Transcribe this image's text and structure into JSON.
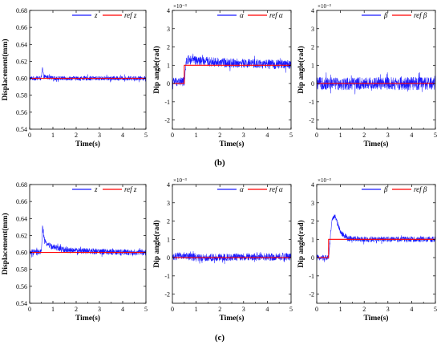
{
  "chart_data": [
    {
      "type": "line",
      "group": "b",
      "xlabel": "Time(s)",
      "ylabel": "Displacement(mm)",
      "xlim": [
        0,
        5
      ],
      "ylim": [
        0.54,
        0.68
      ],
      "xticks": [
        "0",
        "1",
        "2",
        "3",
        "4",
        "5"
      ],
      "yticks": [
        "0.54",
        "0.56",
        "0.58",
        "0.60",
        "0.62",
        "0.64",
        "0.66",
        "0.68"
      ],
      "exponent_label": "",
      "legend": {
        "position": "top-right",
        "items": [
          "z",
          "ref z"
        ]
      },
      "colors": {
        "measured": "#1a1aff",
        "reference": "#ff0000"
      },
      "series": [
        {
          "name": "z",
          "role": "measured",
          "points": [
            [
              0,
              0.6
            ],
            [
              0.5,
              0.6
            ],
            [
              0.55,
              0.612
            ],
            [
              0.6,
              0.602
            ],
            [
              1,
              0.6
            ],
            [
              2,
              0.6
            ],
            [
              3,
              0.6
            ],
            [
              4,
              0.6
            ],
            [
              5,
              0.6
            ]
          ],
          "noise": 0.0025
        },
        {
          "name": "ref z",
          "role": "reference",
          "points": [
            [
              0,
              0.6
            ],
            [
              5,
              0.6
            ]
          ],
          "noise": 0
        }
      ]
    },
    {
      "type": "line",
      "group": "b",
      "xlabel": "Time(s)",
      "ylabel": "Dip angle(rad)",
      "xlim": [
        0,
        5
      ],
      "ylim": [
        -2.5,
        4
      ],
      "xticks": [
        "0",
        "1",
        "2",
        "3",
        "4",
        "5"
      ],
      "yticks": [
        "-2",
        "-1",
        "0",
        "1",
        "2",
        "3",
        "4"
      ],
      "exponent_label": "×10⁻³",
      "legend": {
        "position": "top-right",
        "items": [
          "α",
          "ref α"
        ]
      },
      "colors": {
        "measured": "#1a1aff",
        "reference": "#ff0000"
      },
      "series": [
        {
          "name": "α",
          "role": "measured",
          "points": [
            [
              0,
              0.1
            ],
            [
              0.5,
              0.1
            ],
            [
              0.6,
              1.3
            ],
            [
              1,
              1.25
            ],
            [
              2,
              1.15
            ],
            [
              3,
              1.1
            ],
            [
              4,
              1.05
            ],
            [
              5,
              1.05
            ]
          ],
          "noise": 0.25
        },
        {
          "name": "ref α",
          "role": "reference",
          "points": [
            [
              0,
              0
            ],
            [
              0.5,
              0
            ],
            [
              0.5,
              1.0
            ],
            [
              5,
              1.0
            ]
          ],
          "noise": 0
        }
      ]
    },
    {
      "type": "line",
      "group": "b",
      "xlabel": "Time(s)",
      "ylabel": "Dip angle(rad)",
      "xlim": [
        0,
        5
      ],
      "ylim": [
        -2.5,
        4
      ],
      "xticks": [
        "0",
        "1",
        "2",
        "3",
        "4",
        "5"
      ],
      "yticks": [
        "-2",
        "-1",
        "0",
        "1",
        "2",
        "3",
        "4"
      ],
      "exponent_label": "×10⁻³",
      "legend": {
        "position": "top-right",
        "items": [
          "β",
          "ref β"
        ]
      },
      "colors": {
        "measured": "#1a1aff",
        "reference": "#ff0000"
      },
      "series": [
        {
          "name": "β",
          "role": "measured",
          "points": [
            [
              0,
              0.0
            ],
            [
              5,
              0.0
            ]
          ],
          "noise": 0.35
        },
        {
          "name": "ref β",
          "role": "reference",
          "points": [
            [
              0,
              0
            ],
            [
              5,
              0
            ]
          ],
          "noise": 0
        }
      ]
    },
    {
      "type": "line",
      "group": "c",
      "xlabel": "Time(s)",
      "ylabel": "Displacement(mm)",
      "xlim": [
        0,
        5
      ],
      "ylim": [
        0.54,
        0.68
      ],
      "xticks": [
        "0",
        "1",
        "2",
        "3",
        "4",
        "5"
      ],
      "yticks": [
        "0.54",
        "0.56",
        "0.58",
        "0.60",
        "0.62",
        "0.64",
        "0.66",
        "0.68"
      ],
      "exponent_label": "",
      "legend": {
        "position": "top-right",
        "items": [
          "z",
          "ref z"
        ]
      },
      "colors": {
        "measured": "#1a1aff",
        "reference": "#ff0000"
      },
      "series": [
        {
          "name": "z",
          "role": "measured",
          "points": [
            [
              0,
              0.6
            ],
            [
              0.5,
              0.6
            ],
            [
              0.55,
              0.63
            ],
            [
              0.65,
              0.612
            ],
            [
              1,
              0.606
            ],
            [
              1.5,
              0.603
            ],
            [
              2,
              0.602
            ],
            [
              3,
              0.601
            ],
            [
              4,
              0.6
            ],
            [
              5,
              0.6
            ]
          ],
          "noise": 0.0035
        },
        {
          "name": "ref z",
          "role": "reference",
          "points": [
            [
              0,
              0.6
            ],
            [
              5,
              0.6
            ]
          ],
          "noise": 0
        }
      ]
    },
    {
      "type": "line",
      "group": "c",
      "xlabel": "Time(s)",
      "ylabel": "Dip angle(rad)",
      "xlim": [
        0,
        5
      ],
      "ylim": [
        -2.5,
        4
      ],
      "xticks": [
        "0",
        "1",
        "2",
        "3",
        "4",
        "5"
      ],
      "yticks": [
        "-2",
        "-1",
        "0",
        "1",
        "2",
        "3",
        "4"
      ],
      "exponent_label": "×10⁻³",
      "legend": {
        "position": "top-right",
        "items": [
          "α",
          "ref α"
        ]
      },
      "colors": {
        "measured": "#1a1aff",
        "reference": "#ff0000"
      },
      "series": [
        {
          "name": "α",
          "role": "measured",
          "points": [
            [
              0,
              0.05
            ],
            [
              0.5,
              0.1
            ],
            [
              1,
              0.0
            ],
            [
              5,
              0.05
            ]
          ],
          "noise": 0.2
        },
        {
          "name": "ref α",
          "role": "reference",
          "points": [
            [
              0,
              0
            ],
            [
              5,
              0
            ]
          ],
          "noise": 0
        }
      ]
    },
    {
      "type": "line",
      "group": "c",
      "xlabel": "Time(s)",
      "ylabel": "Dip angle(rad)",
      "xlim": [
        0,
        5
      ],
      "ylim": [
        -2.5,
        4
      ],
      "xticks": [
        "0",
        "1",
        "2",
        "3",
        "4",
        "5"
      ],
      "yticks": [
        "-2",
        "-1",
        "0",
        "1",
        "2",
        "3",
        "4"
      ],
      "exponent_label": "×10⁻³",
      "legend": {
        "position": "top-right",
        "items": [
          "β",
          "ref β"
        ]
      },
      "colors": {
        "measured": "#1a1aff",
        "reference": "#ff0000"
      },
      "series": [
        {
          "name": "β",
          "role": "measured",
          "points": [
            [
              0,
              0.0
            ],
            [
              0.5,
              0.0
            ],
            [
              0.65,
              2.2
            ],
            [
              0.8,
              2.2
            ],
            [
              1.0,
              1.4
            ],
            [
              1.3,
              1.05
            ],
            [
              2,
              1.0
            ],
            [
              5,
              1.0
            ]
          ],
          "noise": 0.15
        },
        {
          "name": "ref β",
          "role": "reference",
          "points": [
            [
              0,
              0
            ],
            [
              0.5,
              0
            ],
            [
              0.5,
              1.0
            ],
            [
              5,
              1.0
            ]
          ],
          "noise": 0
        }
      ]
    }
  ],
  "captions": {
    "b": "(b)",
    "c": "(c)"
  }
}
